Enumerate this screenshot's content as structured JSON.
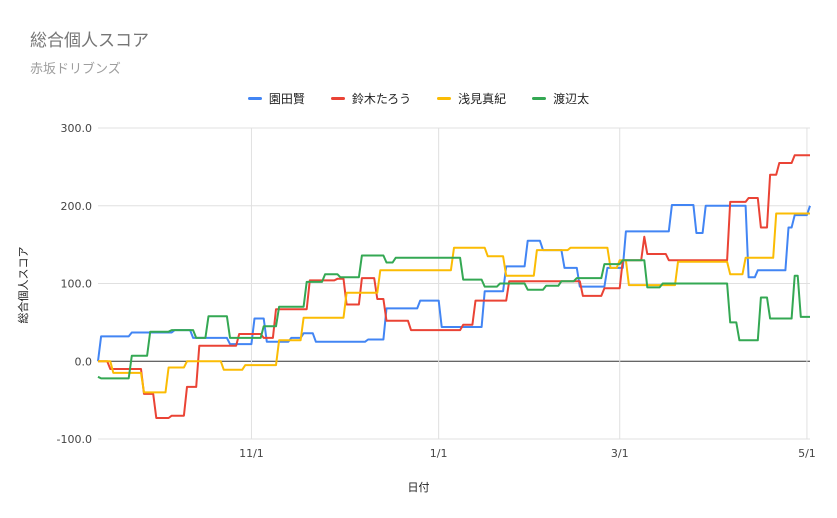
{
  "chart_data": {
    "type": "line",
    "title": "総合個人スコア",
    "subtitle": "赤坂ドリブンズ",
    "xlabel": "日付",
    "ylabel": "総合個人スコア",
    "ylim": [
      -100,
      300
    ],
    "yticks": [
      "300.0",
      "200.0",
      "100.0",
      "0.0",
      "-100.0"
    ],
    "ytick_values": [
      300,
      200,
      100,
      0,
      -100
    ],
    "x_start": "2021-09-12",
    "x_end": "2022-05-02",
    "xticks": [
      {
        "date": "2021-11-01",
        "label": "11/1"
      },
      {
        "date": "2022-01-01",
        "label": "1/1"
      },
      {
        "date": "2022-03-01",
        "label": "3/1"
      },
      {
        "date": "2022-05-01",
        "label": "5/1"
      }
    ],
    "grid": true,
    "legend_position": "top",
    "series": [
      {
        "name": "園田賢",
        "color": "#4285f4",
        "points": [
          [
            "2021-09-12",
            0
          ],
          [
            "2021-09-13",
            32
          ],
          [
            "2021-09-22",
            32
          ],
          [
            "2021-09-23",
            37
          ],
          [
            "2021-10-06",
            37
          ],
          [
            "2021-10-07",
            40
          ],
          [
            "2021-10-12",
            40
          ],
          [
            "2021-10-13",
            30
          ],
          [
            "2021-10-24",
            30
          ],
          [
            "2021-10-25",
            22
          ],
          [
            "2021-11-01",
            22
          ],
          [
            "2021-11-02",
            55
          ],
          [
            "2021-11-05",
            55
          ],
          [
            "2021-11-06",
            25
          ],
          [
            "2021-11-13",
            25
          ],
          [
            "2021-11-14",
            30
          ],
          [
            "2021-11-17",
            30
          ],
          [
            "2021-11-18",
            36
          ],
          [
            "2021-11-21",
            36
          ],
          [
            "2021-11-22",
            25
          ],
          [
            "2021-12-08",
            25
          ],
          [
            "2021-12-09",
            28
          ],
          [
            "2021-12-14",
            28
          ],
          [
            "2021-12-15",
            68
          ],
          [
            "2021-12-25",
            68
          ],
          [
            "2021-12-26",
            78
          ],
          [
            "2022-01-01",
            78
          ],
          [
            "2022-01-02",
            44
          ],
          [
            "2022-01-15",
            44
          ],
          [
            "2022-01-16",
            90
          ],
          [
            "2022-01-22",
            90
          ],
          [
            "2022-01-23",
            122
          ],
          [
            "2022-01-29",
            122
          ],
          [
            "2022-01-30",
            155
          ],
          [
            "2022-02-03",
            155
          ],
          [
            "2022-02-04",
            143
          ],
          [
            "2022-02-10",
            143
          ],
          [
            "2022-02-11",
            120
          ],
          [
            "2022-02-15",
            120
          ],
          [
            "2022-02-16",
            96
          ],
          [
            "2022-02-24",
            96
          ],
          [
            "2022-02-25",
            120
          ],
          [
            "2022-03-02",
            120
          ],
          [
            "2022-03-03",
            167
          ],
          [
            "2022-03-17",
            167
          ],
          [
            "2022-03-18",
            201
          ],
          [
            "2022-03-25",
            201
          ],
          [
            "2022-03-26",
            165
          ],
          [
            "2022-03-28",
            165
          ],
          [
            "2022-03-29",
            200
          ],
          [
            "2022-04-11",
            200
          ],
          [
            "2022-04-12",
            108
          ],
          [
            "2022-04-14",
            108
          ],
          [
            "2022-04-15",
            117
          ],
          [
            "2022-04-24",
            117
          ],
          [
            "2022-04-25",
            172
          ],
          [
            "2022-04-26",
            172
          ],
          [
            "2022-04-27",
            188
          ],
          [
            "2022-05-01",
            188
          ],
          [
            "2022-05-02",
            200
          ]
        ]
      },
      {
        "name": "鈴木たろう",
        "color": "#ea4335",
        "points": [
          [
            "2021-09-12",
            0
          ],
          [
            "2021-09-15",
            0
          ],
          [
            "2021-09-16",
            -10
          ],
          [
            "2021-09-26",
            -10
          ],
          [
            "2021-09-27",
            -42
          ],
          [
            "2021-09-30",
            -42
          ],
          [
            "2021-10-01",
            -73
          ],
          [
            "2021-10-05",
            -73
          ],
          [
            "2021-10-06",
            -70
          ],
          [
            "2021-10-10",
            -70
          ],
          [
            "2021-10-11",
            -33
          ],
          [
            "2021-10-14",
            -33
          ],
          [
            "2021-10-15",
            20
          ],
          [
            "2021-10-27",
            20
          ],
          [
            "2021-10-28",
            35
          ],
          [
            "2021-11-04",
            35
          ],
          [
            "2021-11-05",
            30
          ],
          [
            "2021-11-08",
            30
          ],
          [
            "2021-11-09",
            67
          ],
          [
            "2021-11-19",
            67
          ],
          [
            "2021-11-20",
            104
          ],
          [
            "2021-11-28",
            104
          ],
          [
            "2021-11-29",
            106
          ],
          [
            "2021-12-01",
            106
          ],
          [
            "2021-12-02",
            73
          ],
          [
            "2021-12-06",
            73
          ],
          [
            "2021-12-07",
            107
          ],
          [
            "2021-12-11",
            107
          ],
          [
            "2021-12-12",
            80
          ],
          [
            "2021-12-14",
            80
          ],
          [
            "2021-12-15",
            52
          ],
          [
            "2021-12-22",
            52
          ],
          [
            "2021-12-23",
            40
          ],
          [
            "2022-01-08",
            40
          ],
          [
            "2022-01-09",
            47
          ],
          [
            "2022-01-12",
            47
          ],
          [
            "2022-01-13",
            78
          ],
          [
            "2022-01-23",
            78
          ],
          [
            "2022-01-24",
            103
          ],
          [
            "2022-02-16",
            103
          ],
          [
            "2022-02-17",
            84
          ],
          [
            "2022-02-23",
            84
          ],
          [
            "2022-02-24",
            94
          ],
          [
            "2022-03-01",
            94
          ],
          [
            "2022-03-02",
            130
          ],
          [
            "2022-03-08",
            130
          ],
          [
            "2022-03-09",
            160
          ],
          [
            "2022-03-10",
            138
          ],
          [
            "2022-03-16",
            138
          ],
          [
            "2022-03-17",
            130
          ],
          [
            "2022-04-05",
            130
          ],
          [
            "2022-04-06",
            205
          ],
          [
            "2022-04-11",
            205
          ],
          [
            "2022-04-12",
            210
          ],
          [
            "2022-04-15",
            210
          ],
          [
            "2022-04-16",
            172
          ],
          [
            "2022-04-18",
            172
          ],
          [
            "2022-04-19",
            240
          ],
          [
            "2022-04-21",
            240
          ],
          [
            "2022-04-22",
            255
          ],
          [
            "2022-04-26",
            255
          ],
          [
            "2022-04-27",
            265
          ],
          [
            "2022-05-02",
            265
          ]
        ]
      },
      {
        "name": "浅見真紀",
        "color": "#fbbc04",
        "points": [
          [
            "2021-09-12",
            0
          ],
          [
            "2021-09-16",
            0
          ],
          [
            "2021-09-17",
            -15
          ],
          [
            "2021-09-26",
            -15
          ],
          [
            "2021-09-27",
            -40
          ],
          [
            "2021-10-04",
            -40
          ],
          [
            "2021-10-05",
            -8
          ],
          [
            "2021-10-10",
            -8
          ],
          [
            "2021-10-11",
            0
          ],
          [
            "2021-10-22",
            0
          ],
          [
            "2021-10-23",
            -11
          ],
          [
            "2021-10-29",
            -11
          ],
          [
            "2021-10-30",
            -5
          ],
          [
            "2021-11-09",
            -5
          ],
          [
            "2021-11-10",
            27
          ],
          [
            "2021-11-17",
            27
          ],
          [
            "2021-11-18",
            56
          ],
          [
            "2021-12-01",
            56
          ],
          [
            "2021-12-02",
            88
          ],
          [
            "2021-12-12",
            88
          ],
          [
            "2021-12-13",
            117
          ],
          [
            "2022-01-05",
            117
          ],
          [
            "2022-01-06",
            146
          ],
          [
            "2022-01-16",
            146
          ],
          [
            "2022-01-17",
            135
          ],
          [
            "2022-01-22",
            135
          ],
          [
            "2022-01-23",
            110
          ],
          [
            "2022-02-01",
            110
          ],
          [
            "2022-02-02",
            143
          ],
          [
            "2022-02-12",
            143
          ],
          [
            "2022-02-13",
            146
          ],
          [
            "2022-02-25",
            146
          ],
          [
            "2022-02-26",
            120
          ],
          [
            "2022-02-28",
            120
          ],
          [
            "2022-03-01",
            130
          ],
          [
            "2022-03-03",
            130
          ],
          [
            "2022-03-04",
            98
          ],
          [
            "2022-03-19",
            98
          ],
          [
            "2022-03-20",
            128
          ],
          [
            "2022-04-05",
            128
          ],
          [
            "2022-04-06",
            112
          ],
          [
            "2022-04-10",
            112
          ],
          [
            "2022-04-11",
            133
          ],
          [
            "2022-04-20",
            133
          ],
          [
            "2022-04-21",
            190
          ],
          [
            "2022-05-02",
            190
          ]
        ]
      },
      {
        "name": "渡辺太",
        "color": "#34a853",
        "points": [
          [
            "2021-09-12",
            -20
          ],
          [
            "2021-09-13",
            -22
          ],
          [
            "2021-09-22",
            -22
          ],
          [
            "2021-09-23",
            7
          ],
          [
            "2021-09-28",
            7
          ],
          [
            "2021-09-29",
            38
          ],
          [
            "2021-10-05",
            38
          ],
          [
            "2021-10-06",
            40
          ],
          [
            "2021-10-13",
            40
          ],
          [
            "2021-10-14",
            30
          ],
          [
            "2021-10-17",
            30
          ],
          [
            "2021-10-18",
            58
          ],
          [
            "2021-10-24",
            58
          ],
          [
            "2021-10-25",
            30
          ],
          [
            "2021-11-04",
            30
          ],
          [
            "2021-11-05",
            45
          ],
          [
            "2021-11-09",
            45
          ],
          [
            "2021-11-10",
            70
          ],
          [
            "2021-11-18",
            70
          ],
          [
            "2021-11-19",
            102
          ],
          [
            "2021-11-24",
            102
          ],
          [
            "2021-11-25",
            112
          ],
          [
            "2021-11-29",
            112
          ],
          [
            "2021-11-30",
            108
          ],
          [
            "2021-12-06",
            108
          ],
          [
            "2021-12-07",
            136
          ],
          [
            "2021-12-14",
            136
          ],
          [
            "2021-12-15",
            127
          ],
          [
            "2021-12-17",
            127
          ],
          [
            "2021-12-18",
            133
          ],
          [
            "2022-01-08",
            133
          ],
          [
            "2022-01-09",
            105
          ],
          [
            "2022-01-15",
            105
          ],
          [
            "2022-01-16",
            96
          ],
          [
            "2022-01-20",
            96
          ],
          [
            "2022-01-21",
            100
          ],
          [
            "2022-01-29",
            100
          ],
          [
            "2022-01-30",
            92
          ],
          [
            "2022-02-04",
            92
          ],
          [
            "2022-02-05",
            97
          ],
          [
            "2022-02-09",
            97
          ],
          [
            "2022-02-10",
            103
          ],
          [
            "2022-02-14",
            103
          ],
          [
            "2022-02-15",
            107
          ],
          [
            "2022-02-23",
            107
          ],
          [
            "2022-02-24",
            125
          ],
          [
            "2022-03-01",
            125
          ],
          [
            "2022-03-02",
            130
          ],
          [
            "2022-03-09",
            130
          ],
          [
            "2022-03-10",
            95
          ],
          [
            "2022-03-14",
            95
          ],
          [
            "2022-03-15",
            100
          ],
          [
            "2022-04-05",
            100
          ],
          [
            "2022-04-06",
            50
          ],
          [
            "2022-04-08",
            50
          ],
          [
            "2022-04-09",
            27
          ],
          [
            "2022-04-15",
            27
          ],
          [
            "2022-04-16",
            82
          ],
          [
            "2022-04-18",
            82
          ],
          [
            "2022-04-19",
            55
          ],
          [
            "2022-04-26",
            55
          ],
          [
            "2022-04-27",
            110
          ],
          [
            "2022-04-28",
            110
          ],
          [
            "2022-04-29",
            57
          ],
          [
            "2022-05-02",
            57
          ]
        ]
      }
    ]
  }
}
